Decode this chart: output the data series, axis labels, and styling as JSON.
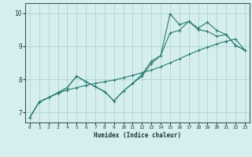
{
  "xlabel": "Humidex (Indice chaleur)",
  "bg_color": "#d6eeee",
  "grid_color": "#aad4d4",
  "line_color": "#2a7a70",
  "xlim": [
    -0.5,
    23.5
  ],
  "ylim": [
    6.7,
    10.3
  ],
  "xticks": [
    0,
    1,
    2,
    3,
    4,
    5,
    6,
    7,
    8,
    9,
    10,
    11,
    12,
    13,
    14,
    15,
    16,
    17,
    18,
    19,
    20,
    21,
    22,
    23
  ],
  "yticks": [
    7,
    8,
    9,
    10
  ],
  "series": [
    {
      "x": [
        0,
        1,
        2,
        3,
        4,
        5,
        6,
        7,
        8,
        9,
        10,
        11,
        12,
        13,
        14,
        15,
        16,
        17,
        18,
        19,
        20,
        21,
        22,
        23
      ],
      "y": [
        6.85,
        7.32,
        7.45,
        7.58,
        7.68,
        7.75,
        7.82,
        7.88,
        7.93,
        7.98,
        8.05,
        8.12,
        8.2,
        8.28,
        8.38,
        8.5,
        8.62,
        8.75,
        8.87,
        8.97,
        9.07,
        9.15,
        9.22,
        8.88
      ]
    },
    {
      "x": [
        0,
        1,
        2,
        3,
        4,
        5,
        6,
        7,
        8,
        9,
        10,
        11,
        12,
        13,
        14,
        15,
        16,
        17,
        18,
        19,
        20,
        21,
        22,
        23
      ],
      "y": [
        6.85,
        7.32,
        7.45,
        7.6,
        7.75,
        8.1,
        7.93,
        7.78,
        7.63,
        7.35,
        7.65,
        7.88,
        8.1,
        8.48,
        8.72,
        9.4,
        9.48,
        9.75,
        9.5,
        9.45,
        9.3,
        9.35,
        9.03,
        8.88
      ]
    },
    {
      "x": [
        0,
        1,
        2,
        3,
        4,
        5,
        6,
        7,
        8,
        9,
        10,
        11,
        12,
        13,
        14,
        15,
        16,
        17,
        18,
        19,
        20,
        21,
        22,
        23
      ],
      "y": [
        6.85,
        7.32,
        7.45,
        7.6,
        7.75,
        8.1,
        7.93,
        7.78,
        7.63,
        7.35,
        7.65,
        7.88,
        8.15,
        8.55,
        8.72,
        9.98,
        9.65,
        9.75,
        9.55,
        9.72,
        9.48,
        9.35,
        9.03,
        8.88
      ]
    }
  ]
}
